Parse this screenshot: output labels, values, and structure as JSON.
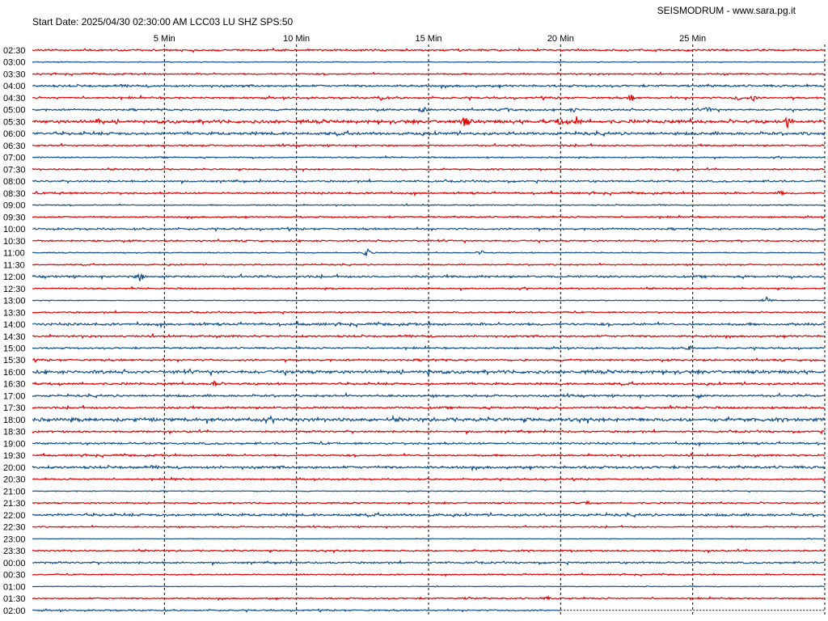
{
  "header": {
    "title": "Start Date: 2025/04/30 02:30:00 AM LCC03 LU SHZ SPS:50",
    "site": "SEISMODRUM - www.sara.pg.it"
  },
  "colors": {
    "trace_a": "#e00000",
    "trace_b": "#104e8b",
    "grid": "#000000",
    "background": "#ffffff"
  },
  "chart_data": {
    "type": "line",
    "xlabel": "",
    "ylabel": "",
    "xlim": [
      0,
      30
    ],
    "grid": "dashed vertical lines every 5 minutes",
    "minute_marks": [
      {
        "minute": 5,
        "label": "5 Min"
      },
      {
        "minute": 10,
        "label": "10 Min"
      },
      {
        "minute": 15,
        "label": "15 Min"
      },
      {
        "minute": 20,
        "label": "20 Min"
      },
      {
        "minute": 25,
        "label": "25 Min"
      }
    ],
    "rows": [
      {
        "label": "02:30",
        "color": "red",
        "noise": 1.0,
        "events": []
      },
      {
        "label": "03:00",
        "color": "blue",
        "noise": 0.4,
        "events": []
      },
      {
        "label": "03:30",
        "color": "red",
        "noise": 0.8,
        "events": []
      },
      {
        "label": "04:00",
        "color": "blue",
        "noise": 1.2,
        "events": []
      },
      {
        "label": "04:30",
        "color": "red",
        "noise": 1.0,
        "events": [
          {
            "minute": 13.2,
            "amp": 4
          },
          {
            "minute": 22.7,
            "amp": 4
          },
          {
            "minute": 26.7,
            "amp": 4
          },
          {
            "minute": 27.3,
            "amp": 4
          }
        ]
      },
      {
        "label": "05:00",
        "color": "blue",
        "noise": 1.0,
        "events": [
          {
            "minute": 14.8,
            "amp": 4
          },
          {
            "minute": 18.0,
            "amp": 3
          },
          {
            "minute": 20.5,
            "amp": 3
          },
          {
            "minute": 25.6,
            "amp": 5
          }
        ]
      },
      {
        "label": "05:30",
        "color": "red",
        "noise": 1.8,
        "events": [
          {
            "minute": 2.5,
            "amp": 4
          },
          {
            "minute": 16.4,
            "amp": 8
          },
          {
            "minute": 20.0,
            "amp": 5
          },
          {
            "minute": 20.6,
            "amp": 6
          },
          {
            "minute": 28.6,
            "amp": 6
          }
        ]
      },
      {
        "label": "06:00",
        "color": "blue",
        "noise": 1.6,
        "events": []
      },
      {
        "label": "06:30",
        "color": "red",
        "noise": 0.9,
        "events": []
      },
      {
        "label": "07:00",
        "color": "blue",
        "noise": 0.7,
        "events": []
      },
      {
        "label": "07:30",
        "color": "red",
        "noise": 0.8,
        "events": []
      },
      {
        "label": "08:00",
        "color": "blue",
        "noise": 1.0,
        "events": []
      },
      {
        "label": "08:30",
        "color": "red",
        "noise": 1.0,
        "events": [
          {
            "minute": 1.1,
            "amp": 3
          },
          {
            "minute": 28.3,
            "amp": 3
          }
        ]
      },
      {
        "label": "09:00",
        "color": "blue",
        "noise": 0.6,
        "events": []
      },
      {
        "label": "09:30",
        "color": "red",
        "noise": 0.8,
        "events": []
      },
      {
        "label": "10:00",
        "color": "blue",
        "noise": 1.0,
        "events": []
      },
      {
        "label": "10:30",
        "color": "red",
        "noise": 0.9,
        "events": []
      },
      {
        "label": "11:00",
        "color": "blue",
        "noise": 0.5,
        "events": [
          {
            "minute": 12.7,
            "amp": 8
          },
          {
            "minute": 17.0,
            "amp": 3
          }
        ]
      },
      {
        "label": "11:30",
        "color": "red",
        "noise": 0.7,
        "events": []
      },
      {
        "label": "12:00",
        "color": "blue",
        "noise": 1.2,
        "events": [
          {
            "minute": 4.1,
            "amp": 6
          }
        ]
      },
      {
        "label": "12:30",
        "color": "red",
        "noise": 0.8,
        "events": []
      },
      {
        "label": "13:00",
        "color": "blue",
        "noise": 0.4,
        "events": [
          {
            "minute": 27.8,
            "amp": 5
          }
        ]
      },
      {
        "label": "13:30",
        "color": "red",
        "noise": 0.8,
        "events": []
      },
      {
        "label": "14:00",
        "color": "blue",
        "noise": 1.3,
        "events": []
      },
      {
        "label": "14:30",
        "color": "red",
        "noise": 1.0,
        "events": []
      },
      {
        "label": "15:00",
        "color": "blue",
        "noise": 0.9,
        "events": [
          {
            "minute": 24.9,
            "amp": 3
          }
        ]
      },
      {
        "label": "15:30",
        "color": "red",
        "noise": 1.0,
        "events": []
      },
      {
        "label": "16:00",
        "color": "blue",
        "noise": 1.8,
        "events": [
          {
            "minute": 15.0,
            "amp": 3
          }
        ]
      },
      {
        "label": "16:30",
        "color": "red",
        "noise": 1.2,
        "events": [
          {
            "minute": 6.9,
            "amp": 4
          }
        ]
      },
      {
        "label": "17:00",
        "color": "blue",
        "noise": 1.2,
        "events": [
          {
            "minute": 25.2,
            "amp": 3
          }
        ]
      },
      {
        "label": "17:30",
        "color": "red",
        "noise": 1.1,
        "events": []
      },
      {
        "label": "18:00",
        "color": "blue",
        "noise": 1.9,
        "events": [
          {
            "minute": 19.8,
            "amp": 3
          }
        ]
      },
      {
        "label": "18:30",
        "color": "red",
        "noise": 1.0,
        "events": []
      },
      {
        "label": "19:00",
        "color": "blue",
        "noise": 1.1,
        "events": []
      },
      {
        "label": "19:30",
        "color": "red",
        "noise": 1.0,
        "events": []
      },
      {
        "label": "20:00",
        "color": "blue",
        "noise": 1.4,
        "events": []
      },
      {
        "label": "20:30",
        "color": "red",
        "noise": 0.8,
        "events": [
          {
            "minute": 5.5,
            "amp": 2
          }
        ]
      },
      {
        "label": "21:00",
        "color": "blue",
        "noise": 0.5,
        "events": []
      },
      {
        "label": "21:30",
        "color": "red",
        "noise": 0.8,
        "events": [
          {
            "minute": 21.0,
            "amp": 2
          }
        ]
      },
      {
        "label": "22:00",
        "color": "blue",
        "noise": 1.4,
        "events": []
      },
      {
        "label": "22:30",
        "color": "red",
        "noise": 0.7,
        "events": []
      },
      {
        "label": "23:00",
        "color": "blue",
        "noise": 0.3,
        "events": []
      },
      {
        "label": "23:30",
        "color": "red",
        "noise": 0.9,
        "events": []
      },
      {
        "label": "00:00",
        "color": "blue",
        "noise": 1.0,
        "events": []
      },
      {
        "label": "00:30",
        "color": "red",
        "noise": 0.7,
        "events": []
      },
      {
        "label": "01:00",
        "color": "blue",
        "noise": 0.4,
        "events": []
      },
      {
        "label": "01:30",
        "color": "red",
        "noise": 0.8,
        "events": [
          {
            "minute": 16.5,
            "amp": 2
          },
          {
            "minute": 19.5,
            "amp": 2
          }
        ]
      },
      {
        "label": "02:00",
        "color": "blue",
        "noise": 0.8,
        "events": [],
        "end_minute": 20
      }
    ]
  }
}
